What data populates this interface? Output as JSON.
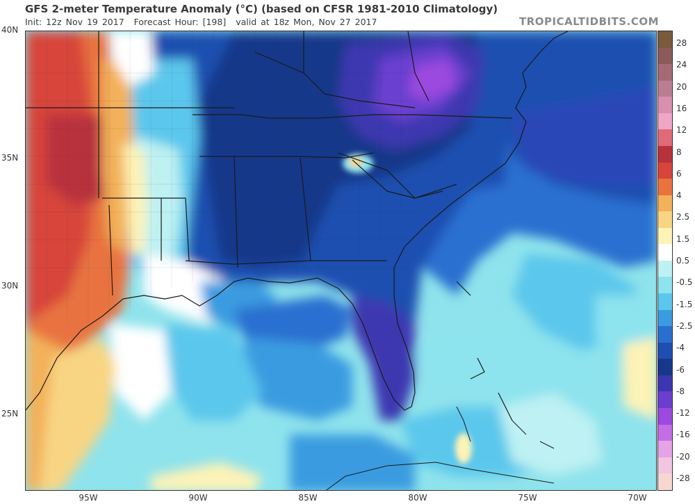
{
  "header": {
    "title": "GFS 2-meter Temperature Anomaly (°C) (based on CFSR 1981-2010 Climatology)",
    "init": "Init: 12z Nov 19 2017",
    "forecast_hour": "Forecast Hour: [198]",
    "valid": "valid at 18z Mon, Nov 27 2017",
    "watermark": "TROPICALTIDBITS.COM"
  },
  "axes": {
    "lat_labels": [
      "40N",
      "35N",
      "30N",
      "25N"
    ],
    "lon_labels": [
      "95W",
      "90W",
      "85W",
      "80W",
      "75W",
      "70W"
    ]
  },
  "colorbar": {
    "labels": [
      "28",
      "24",
      "20",
      "16",
      "12",
      "8",
      "6",
      "4",
      "2.5",
      "1.5",
      "0.5",
      "-0.5",
      "-1.5",
      "-2.5",
      "-4",
      "-6",
      "-8",
      "-12",
      "-16",
      "-20",
      "-28"
    ],
    "colors": [
      "#7a5a3c",
      "#8c5a5a",
      "#a46a76",
      "#bb7d92",
      "#d98fae",
      "#f0a6c6",
      "#e06a78",
      "#b8323c",
      "#d7453a",
      "#e8733f",
      "#f3b15a",
      "#f8d583",
      "#fdf3b7",
      "#ffffff",
      "#bdf1f3",
      "#8de3ee",
      "#5cc7ec",
      "#3b9be0",
      "#2a6fd0",
      "#1e4fb0",
      "#17388a",
      "#3c37b0",
      "#6a3fd0",
      "#9b49df",
      "#c56de6",
      "#e6a3e8",
      "#f2c5e0",
      "#f7d7d2"
    ]
  },
  "map": {
    "background_color": "#8fe3ec",
    "land_border_color": "#222222",
    "county_line_color": "#555555"
  }
}
